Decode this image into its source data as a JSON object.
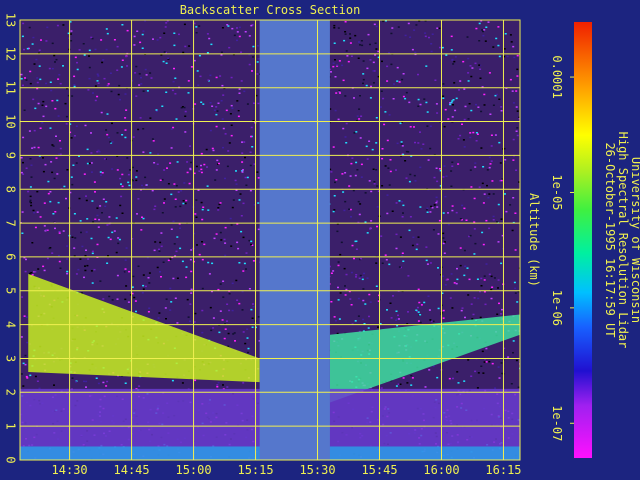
{
  "chart_data": {
    "type": "heatmap",
    "title": "Backscatter Cross Section",
    "ylabel": "Altitude (km)",
    "xlabel": "",
    "ylim": [
      0,
      13
    ],
    "xlim": [
      "14:18",
      "16:19"
    ],
    "yticks": [
      0,
      1,
      2,
      3,
      4,
      5,
      6,
      7,
      8,
      9,
      10,
      11,
      12,
      13
    ],
    "xticks": [
      "14:30",
      "14:45",
      "15:00",
      "15:15",
      "15:30",
      "15:45",
      "16:00",
      "16:15"
    ],
    "grid": true,
    "no_data_interval": [
      "15:16",
      "15:33"
    ],
    "colorbar": {
      "scale": "log",
      "range": [
        5e-08,
        0.0003
      ],
      "ticks": [
        "0.0001",
        "1e-05",
        "1e-06",
        "1e-07"
      ],
      "tick_values": [
        0.0001,
        1e-05,
        1e-06,
        1e-07
      ]
    },
    "features": [
      {
        "name": "descending cloud layer",
        "x": [
          "14:20",
          "15:16"
        ],
        "top_km": [
          5.5,
          3.0
        ],
        "base_km": [
          2.6,
          2.3
        ]
      },
      {
        "name": "ascending layer",
        "x": [
          "15:33",
          "16:19"
        ],
        "top_km": [
          3.7,
          4.3
        ],
        "base_km": [
          1.7,
          3.7
        ]
      },
      {
        "name": "boundary layer",
        "x": [
          "14:18",
          "16:19"
        ],
        "top_km": [
          2.1,
          2.1
        ],
        "base_km": [
          0,
          0
        ]
      }
    ],
    "annotations": [
      "University of Wisconsin",
      "High Spectral Resolution Lidar",
      "26-October-1995 16:17:59 UT"
    ]
  },
  "colors": {
    "background": "#1c2480",
    "grid": "#f0f050",
    "text": "#f0f050",
    "no_data": "#5577cc"
  }
}
